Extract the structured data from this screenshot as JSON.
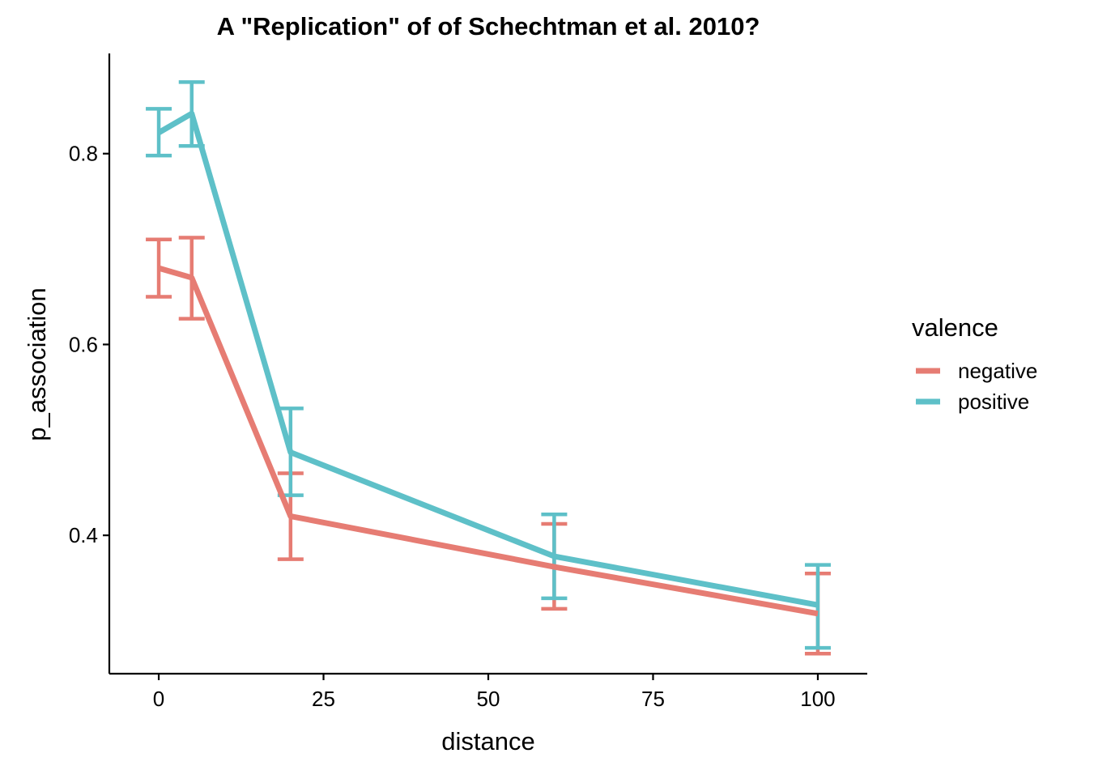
{
  "chart_data": {
    "type": "line",
    "title": "A \"Replication\" of of Schechtman et al. 2010?",
    "xlabel": "distance",
    "ylabel": "p_association",
    "xlim": [
      -7.5,
      107.5
    ],
    "ylim": [
      0.255,
      0.905
    ],
    "xticks": [
      0,
      25,
      50,
      75,
      100
    ],
    "xtick_labels": [
      "0",
      "25",
      "50",
      "75",
      "100"
    ],
    "yticks": [
      0.4,
      0.6,
      0.8
    ],
    "ytick_labels": [
      "0.4",
      "0.6",
      "0.8"
    ],
    "grid": false,
    "error_bars": true,
    "legend": {
      "title": "valence",
      "position": "right"
    },
    "series": [
      {
        "name": "negative",
        "color": "#e67c73",
        "x": [
          0,
          5,
          20,
          60,
          100
        ],
        "y": [
          0.68,
          0.67,
          0.42,
          0.367,
          0.318
        ],
        "ymin": [
          0.65,
          0.627,
          0.375,
          0.323,
          0.276
        ],
        "ymax": [
          0.71,
          0.712,
          0.465,
          0.412,
          0.36
        ]
      },
      {
        "name": "positive",
        "color": "#5ec0c8",
        "x": [
          0,
          5,
          20,
          60,
          100
        ],
        "y": [
          0.822,
          0.842,
          0.487,
          0.378,
          0.327
        ],
        "ymin": [
          0.798,
          0.808,
          0.442,
          0.334,
          0.282
        ],
        "ymax": [
          0.847,
          0.875,
          0.533,
          0.422,
          0.369
        ]
      }
    ]
  }
}
